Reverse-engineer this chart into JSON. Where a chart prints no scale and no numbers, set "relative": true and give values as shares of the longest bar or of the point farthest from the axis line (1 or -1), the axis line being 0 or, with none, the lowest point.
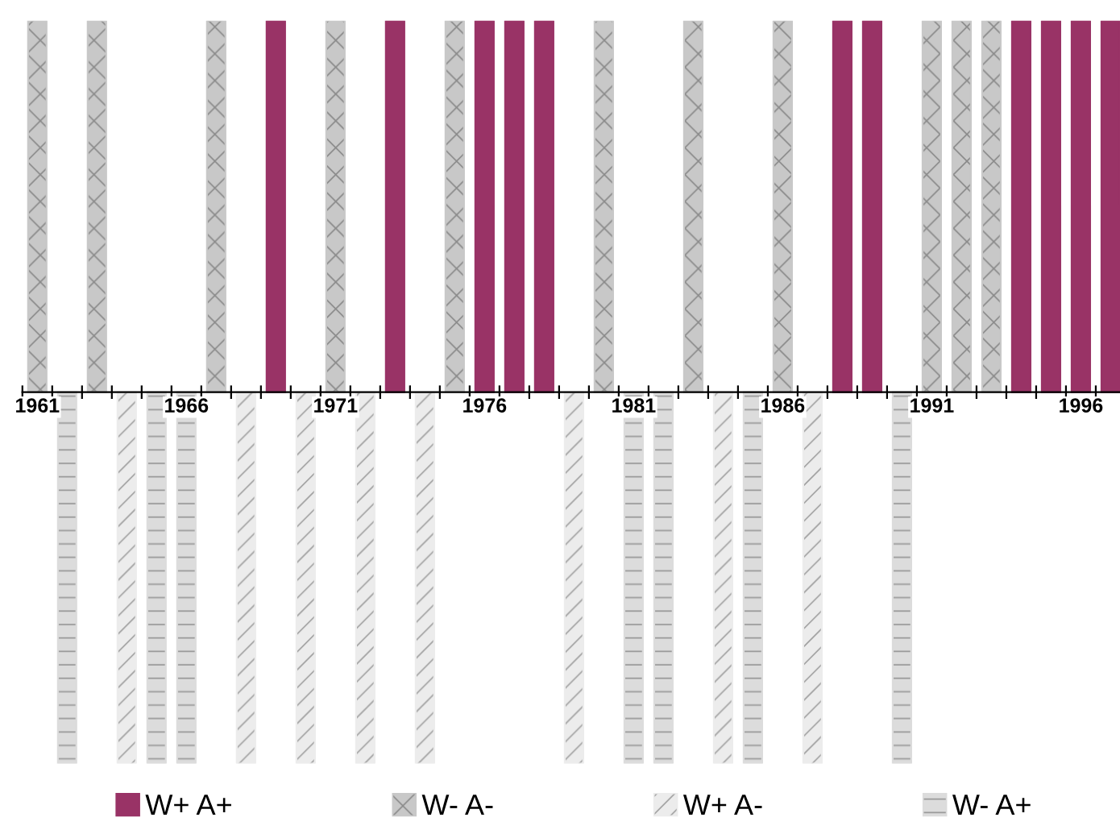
{
  "chart_data": {
    "type": "bar",
    "relative": true,
    "stacked": true,
    "tick_labels": "x",
    "legend": "bottom",
    "grid": false,
    "categories": [
      "1961",
      null,
      null,
      null,
      null,
      "1966",
      null,
      null,
      null,
      null,
      "1971",
      null,
      null,
      null,
      null,
      "1976",
      null,
      null,
      null,
      null,
      "1981",
      null,
      null,
      null,
      null,
      "1986",
      null,
      null,
      null,
      null,
      "1991",
      null,
      null,
      null,
      null,
      "1996",
      null
    ],
    "series": [
      {
        "name": "W+ A+",
        "color": "#993366",
        "values": [
          null,
          null,
          null,
          null,
          null,
          null,
          null,
          null,
          1,
          null,
          null,
          null,
          1,
          null,
          null,
          1,
          1,
          1,
          null,
          null,
          null,
          null,
          null,
          null,
          null,
          null,
          null,
          1,
          1,
          null,
          null,
          null,
          null,
          1,
          1,
          1,
          1
        ]
      },
      {
        "name": "W- A-",
        "color": "#c8c8c8",
        "values": [
          1,
          null,
          1,
          null,
          null,
          null,
          1,
          null,
          null,
          null,
          1,
          null,
          null,
          null,
          1,
          null,
          null,
          null,
          null,
          1,
          null,
          null,
          1,
          null,
          null,
          1,
          null,
          null,
          null,
          null,
          1,
          1,
          1,
          null,
          null,
          null,
          null
        ]
      },
      {
        "name": "W+ A-",
        "color": "#ececec",
        "values": [
          null,
          null,
          null,
          -1,
          null,
          null,
          null,
          -1,
          null,
          -1,
          null,
          -1,
          null,
          -1,
          null,
          null,
          null,
          null,
          -1,
          null,
          null,
          null,
          null,
          -1,
          null,
          null,
          -1,
          null,
          null,
          null,
          null,
          null,
          null,
          null,
          null,
          null,
          null
        ]
      },
      {
        "name": "W- A+",
        "color": "#dcdcdc",
        "values": [
          null,
          -1,
          null,
          null,
          -1,
          -1,
          null,
          null,
          null,
          null,
          null,
          null,
          null,
          null,
          null,
          null,
          null,
          null,
          null,
          null,
          -1,
          -1,
          null,
          null,
          -1,
          null,
          null,
          null,
          null,
          -1,
          null,
          null,
          null,
          null,
          null,
          null,
          null
        ]
      }
    ]
  }
}
